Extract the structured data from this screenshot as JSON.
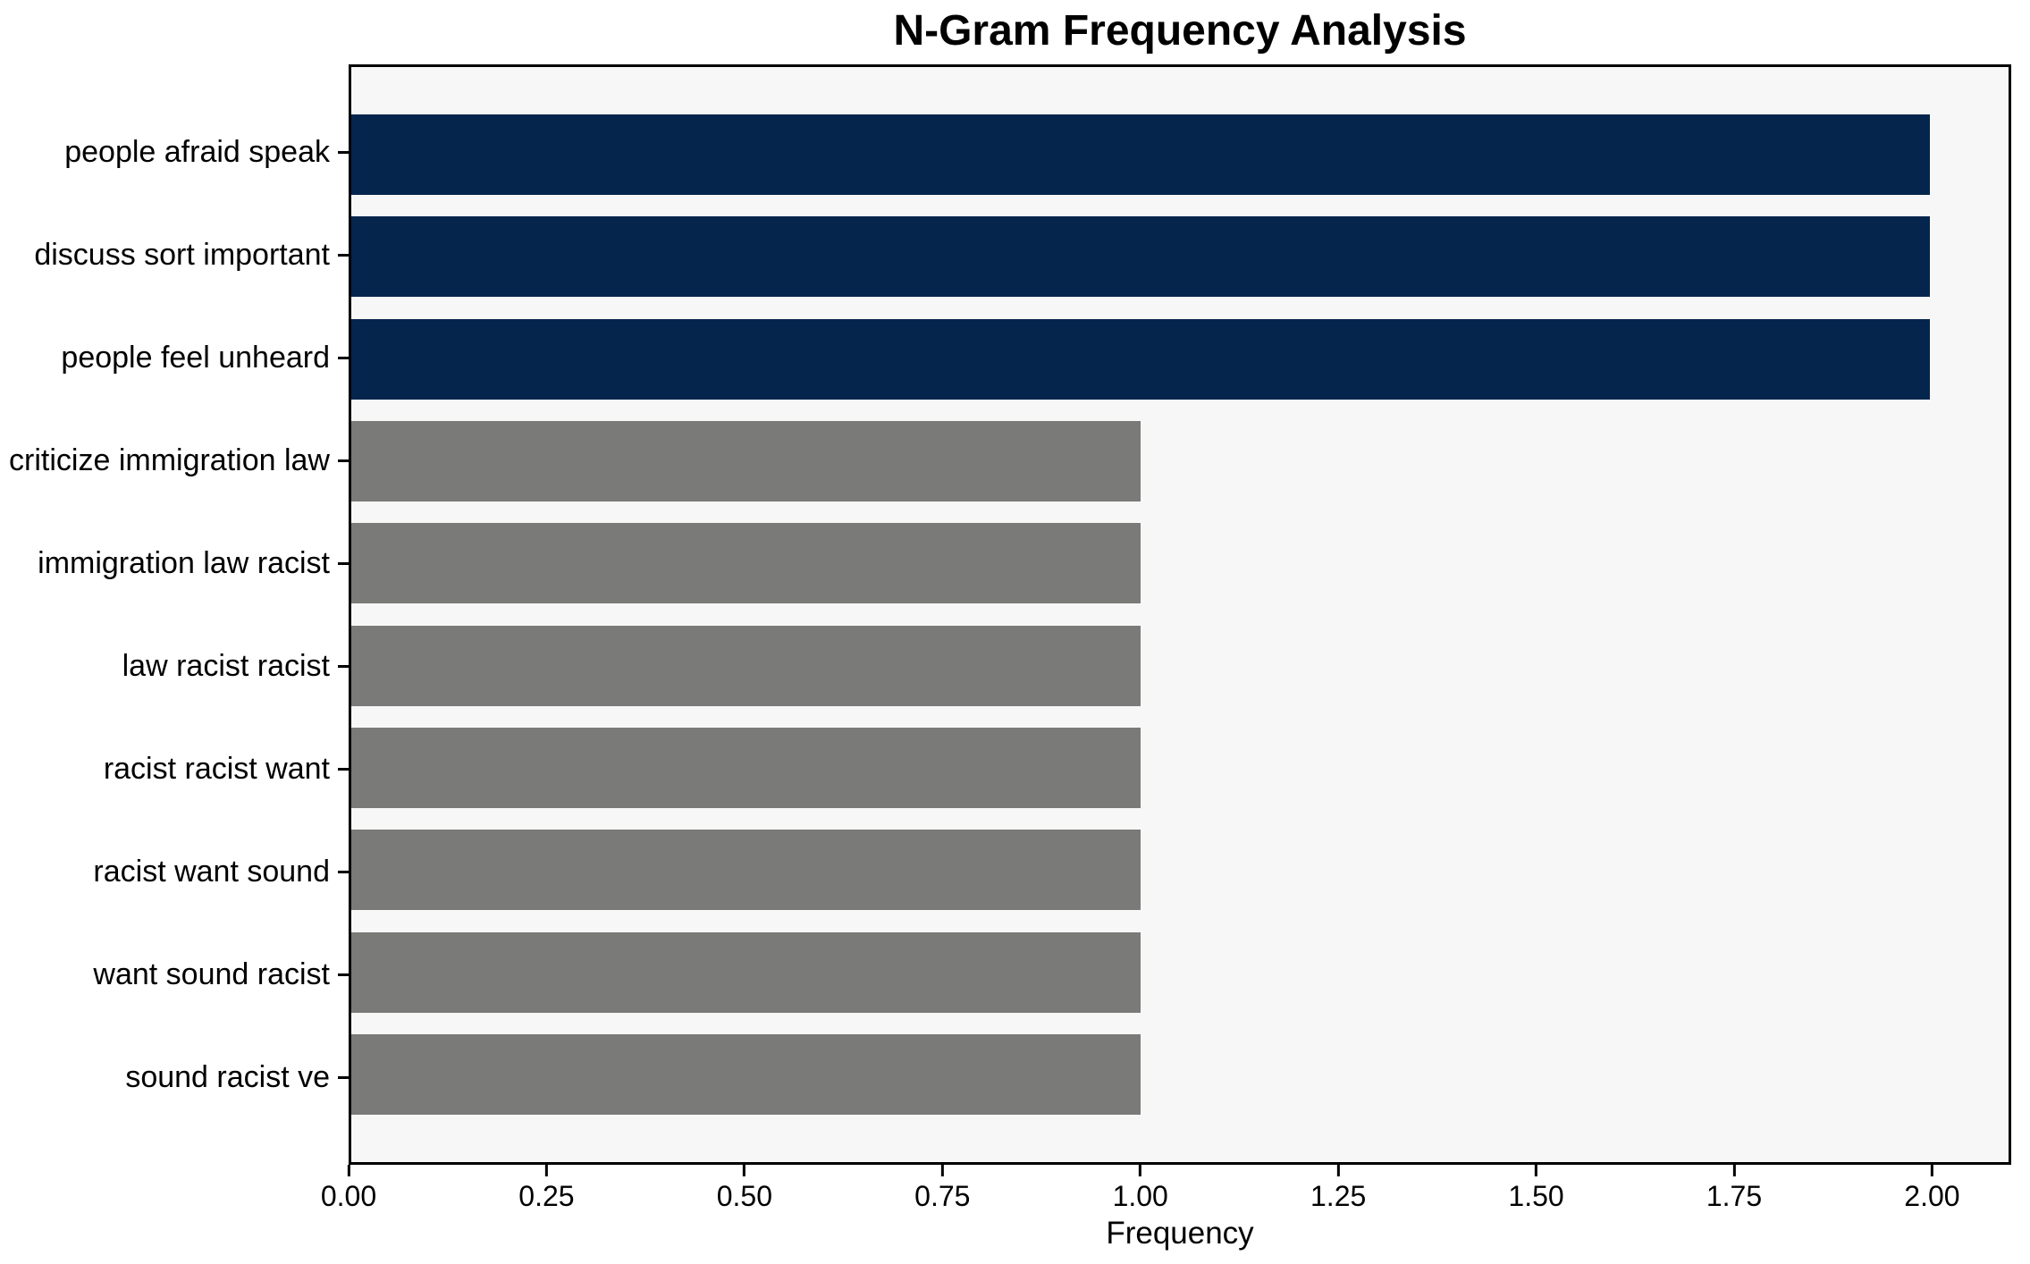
{
  "chart_data": {
    "type": "bar",
    "orientation": "horizontal",
    "title": "N-Gram Frequency Analysis",
    "xlabel": "Frequency",
    "ylabel": "",
    "categories": [
      "people afraid speak",
      "discuss sort important",
      "people feel unheard",
      "criticize immigration law",
      "immigration law racist",
      "law racist racist",
      "racist racist want",
      "racist want sound",
      "want sound racist",
      "sound racist ve"
    ],
    "values": [
      2,
      2,
      2,
      1,
      1,
      1,
      1,
      1,
      1,
      1
    ],
    "bar_colors": [
      "#05254d",
      "#05254d",
      "#05254d",
      "#7a7a78",
      "#7a7a78",
      "#7a7a78",
      "#7a7a78",
      "#7a7a78",
      "#7a7a78",
      "#7a7a78"
    ],
    "xlim": [
      0,
      2.1
    ],
    "xticks": [
      {
        "value": 0.0,
        "label": "0.00"
      },
      {
        "value": 0.25,
        "label": "0.25"
      },
      {
        "value": 0.5,
        "label": "0.50"
      },
      {
        "value": 0.75,
        "label": "0.75"
      },
      {
        "value": 1.0,
        "label": "1.00"
      },
      {
        "value": 1.25,
        "label": "1.25"
      },
      {
        "value": 1.5,
        "label": "1.50"
      },
      {
        "value": 1.75,
        "label": "1.75"
      },
      {
        "value": 2.0,
        "label": "2.00"
      }
    ],
    "grid": false,
    "legend": false,
    "colors": {
      "navy": "#05254d",
      "gray": "#7a7a78",
      "plot_background": "#f7f7f7",
      "figure_background": "#ffffff",
      "spine": "#000000"
    }
  }
}
